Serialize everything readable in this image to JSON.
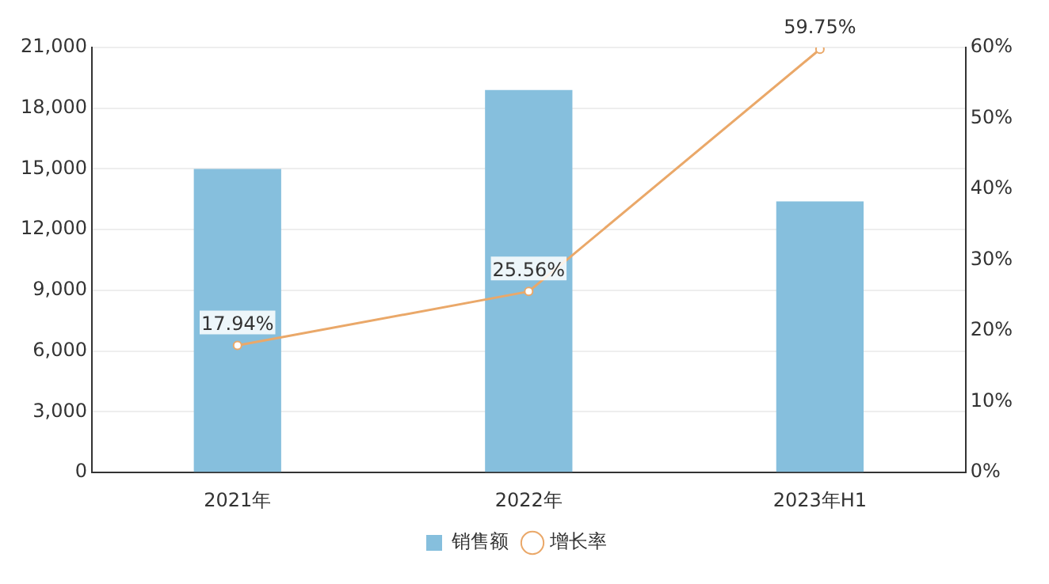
{
  "chart_data": {
    "type": "bar",
    "categories": [
      "2021年",
      "2022年",
      "2023年H1"
    ],
    "series": [
      {
        "name": "销售额",
        "color": "#86bfdd",
        "values": [
          15000,
          18900,
          13400
        ]
      },
      {
        "name": "增长率",
        "type": "line",
        "axis": "y2",
        "color": "#eaa869",
        "values": [
          17.94,
          25.56,
          59.75
        ],
        "value_labels": [
          "17.94%",
          "25.56%",
          "59.75%"
        ]
      }
    ],
    "ylim": [
      0,
      21000
    ],
    "yticks": [
      0,
      {
        "value": 3000,
        "label": "3,000"
      },
      {
        "value": 6000,
        "label": "6,000"
      },
      {
        "value": 9000,
        "label": "9,000"
      },
      {
        "value": 12000,
        "label": "12,000"
      },
      {
        "value": 15000,
        "label": "15,000"
      },
      {
        "value": 18000,
        "label": "18,000"
      },
      {
        "value": 21000,
        "label": "21,000"
      }
    ],
    "y2lim": [
      0,
      60
    ],
    "y2ticks": [
      {
        "value": 0,
        "label": "0%"
      },
      {
        "value": 10,
        "label": "10%"
      },
      {
        "value": 20,
        "label": "20%"
      },
      {
        "value": 30,
        "label": "30%"
      },
      {
        "value": 40,
        "label": "40%"
      },
      {
        "value": 50,
        "label": "50%"
      },
      {
        "value": 60,
        "label": "60%"
      }
    ],
    "grid": "y",
    "legend": "bottom",
    "marker": "circle",
    "line_style": "solid"
  }
}
